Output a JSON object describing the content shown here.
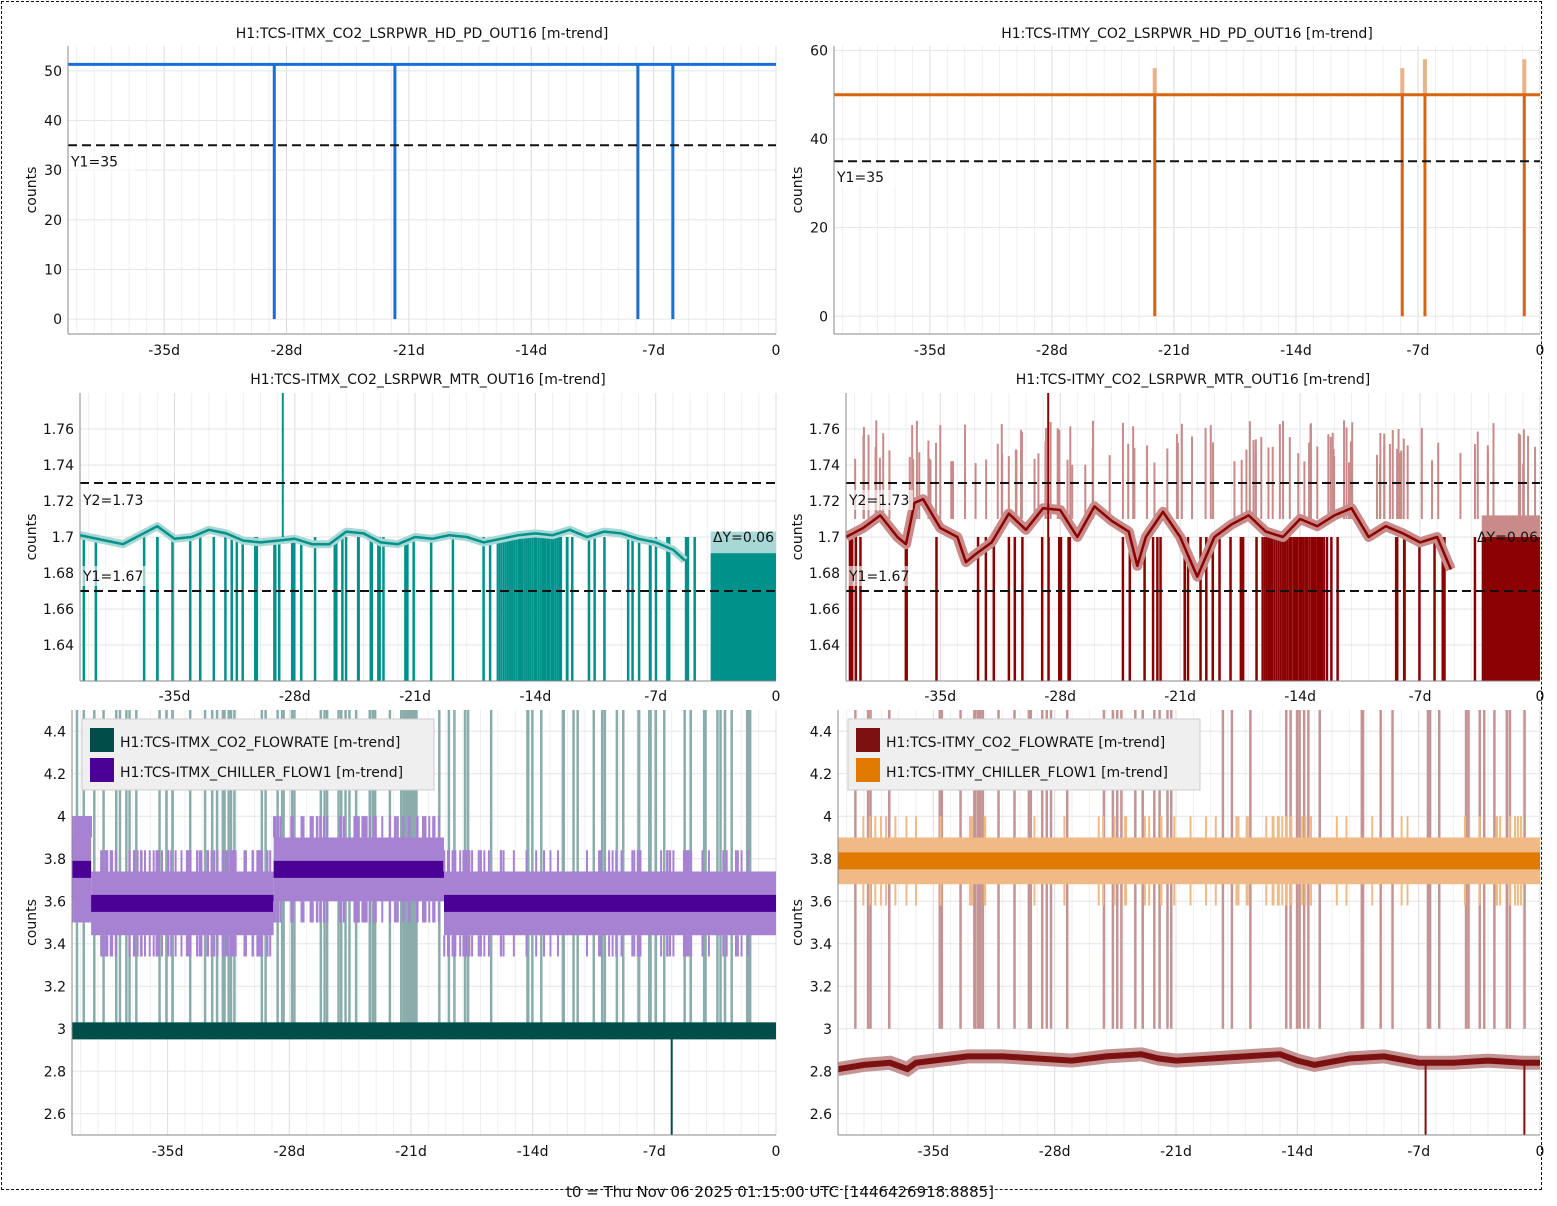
{
  "footer": {
    "t0_label": "t0 = Thu Nov 06 2025 01:15:00 UTC [1446426918.8885]"
  },
  "chart_data": [
    {
      "id": "itmx-hd-pd",
      "type": "line",
      "title": "H1:TCS-ITMX_CO2_LSRPWR_HD_PD_OUT16 [m-trend]",
      "xlabel": "",
      "ylabel": "counts",
      "xlim": [
        -40.5,
        0
      ],
      "ylim": [
        -3,
        55
      ],
      "x_ticks": [
        -35,
        -28,
        -21,
        -14,
        -7,
        0
      ],
      "x_tick_labels": [
        "-35d",
        "-28d",
        "-21d",
        "-14d",
        "-7d",
        "0"
      ],
      "y_ticks": [
        0,
        10,
        20,
        30,
        40,
        50
      ],
      "y_tick_labels": [
        "0",
        "10",
        "20",
        "30",
        "40",
        "50"
      ],
      "grid": true,
      "series": [
        {
          "name": "H1:TCS-ITMX_CO2_LSRPWR_HD_PD_OUT16",
          "color": "#1a6fd6",
          "baseline": 51.3,
          "dropouts_to": 0,
          "dropout_x": [
            -28.7,
            -21.8,
            -7.9,
            -5.9
          ]
        }
      ],
      "hlines": [
        {
          "label": "Y1=35",
          "y": 35
        }
      ]
    },
    {
      "id": "itmy-hd-pd",
      "type": "line",
      "title": "H1:TCS-ITMY_CO2_LSRPWR_HD_PD_OUT16 [m-trend]",
      "xlabel": "",
      "ylabel": "counts",
      "xlim": [
        -40.5,
        0
      ],
      "ylim": [
        -4,
        61
      ],
      "x_ticks": [
        -35,
        -28,
        -21,
        -14,
        -7,
        0
      ],
      "x_tick_labels": [
        "-35d",
        "-28d",
        "-21d",
        "-14d",
        "-7d",
        "0"
      ],
      "y_ticks": [
        0,
        20,
        40,
        60
      ],
      "y_tick_labels": [
        "0",
        "20",
        "40",
        "60"
      ],
      "grid": true,
      "series": [
        {
          "name": "H1:TCS-ITMY_CO2_LSRPWR_HD_PD_OUT16",
          "color": "#d9660f",
          "band_color": "#eab28a",
          "baseline": 50,
          "dropouts_to": 0,
          "dropout_x": [
            -22.1,
            -7.9,
            -6.6,
            -0.9
          ],
          "spike_max": [
            56,
            56,
            58,
            58
          ]
        }
      ],
      "hlines": [
        {
          "label": "Y1=35",
          "y": 35
        }
      ]
    },
    {
      "id": "itmx-mtr",
      "type": "line",
      "title": "H1:TCS-ITMX_CO2_LSRPWR_MTR_OUT16 [m-trend]",
      "xlabel": "",
      "ylabel": "counts",
      "xlim": [
        -40.5,
        0
      ],
      "ylim": [
        1.62,
        1.78
      ],
      "x_ticks": [
        -35,
        -28,
        -21,
        -14,
        -7,
        0
      ],
      "x_tick_labels": [
        "-35d",
        "-28d",
        "-21d",
        "-14d",
        "-7d",
        "0"
      ],
      "y_ticks": [
        1.64,
        1.66,
        1.68,
        1.7,
        1.72,
        1.74,
        1.76
      ],
      "y_tick_labels": [
        "1.64",
        "1.66",
        "1.68",
        "1.7",
        "1.72",
        "1.74",
        "1.76"
      ],
      "grid": true,
      "series": [
        {
          "name": "H1:TCS-ITMX_CO2_LSRPWR_MTR_OUT16",
          "color": "#00918a",
          "band_color": "#a8d8d5",
          "x": [
            -40.5,
            -39,
            -38,
            -37,
            -36,
            -35,
            -34,
            -33,
            -32,
            -31,
            -30,
            -29,
            -28,
            -27,
            -26,
            -25,
            -24,
            -23,
            -22,
            -21,
            -20,
            -19,
            -18,
            -17,
            -16,
            -15,
            -14,
            -13,
            -12,
            -11,
            -10,
            -9,
            -8,
            -7,
            -6,
            -5.3
          ],
          "y": [
            1.701,
            1.698,
            1.696,
            1.701,
            1.706,
            1.699,
            1.7,
            1.704,
            1.702,
            1.698,
            1.697,
            1.698,
            1.699,
            1.696,
            1.696,
            1.703,
            1.702,
            1.697,
            1.696,
            1.7,
            1.699,
            1.701,
            1.7,
            1.697,
            1.699,
            1.701,
            1.702,
            1.701,
            1.704,
            1.7,
            1.703,
            1.702,
            1.699,
            1.697,
            1.693,
            1.687
          ],
          "late_segment": {
            "x": [
              -3.8,
              0
            ],
            "y": 1.691
          }
        }
      ],
      "hlines": [
        {
          "label": "Y2=1.73",
          "y": 1.73
        },
        {
          "label": "Y1=1.67",
          "y": 1.67
        }
      ],
      "delta_label": "ΔY=0.06"
    },
    {
      "id": "itmy-mtr",
      "type": "line",
      "title": "H1:TCS-ITMY_CO2_LSRPWR_MTR_OUT16 [m-trend]",
      "xlabel": "",
      "ylabel": "counts",
      "xlim": [
        -40.5,
        0
      ],
      "ylim": [
        1.62,
        1.78
      ],
      "x_ticks": [
        -35,
        -28,
        -21,
        -14,
        -7,
        0
      ],
      "x_tick_labels": [
        "-35d",
        "-28d",
        "-21d",
        "-14d",
        "-7d",
        "0"
      ],
      "y_ticks": [
        1.64,
        1.66,
        1.68,
        1.7,
        1.72,
        1.74,
        1.76
      ],
      "y_tick_labels": [
        "1.64",
        "1.66",
        "1.68",
        "1.7",
        "1.72",
        "1.74",
        "1.76"
      ],
      "grid": true,
      "series": [
        {
          "name": "H1:TCS-ITMY_CO2_LSRPWR_MTR_OUT16",
          "color": "#8b0000",
          "band_color": "#c98a8a",
          "x": [
            -40.5,
            -39.5,
            -38.5,
            -37.5,
            -37,
            -36.5,
            -36,
            -35,
            -34,
            -33.5,
            -33,
            -32,
            -31,
            -30,
            -29,
            -28,
            -27,
            -26,
            -25,
            -24,
            -23.5,
            -23,
            -22,
            -21,
            -20,
            -19,
            -18,
            -17,
            -16,
            -15,
            -14,
            -13,
            -12,
            -11,
            -10,
            -9,
            -8,
            -7,
            -6,
            -5.2
          ],
          "y": [
            1.7,
            1.705,
            1.712,
            1.7,
            1.696,
            1.719,
            1.721,
            1.705,
            1.7,
            1.686,
            1.69,
            1.697,
            1.713,
            1.704,
            1.716,
            1.715,
            1.7,
            1.717,
            1.709,
            1.703,
            1.684,
            1.7,
            1.714,
            1.7,
            1.678,
            1.7,
            1.707,
            1.712,
            1.703,
            1.7,
            1.71,
            1.706,
            1.712,
            1.716,
            1.7,
            1.706,
            1.702,
            1.697,
            1.7,
            1.682
          ],
          "late_segment": {
            "x": [
              -3.4,
              0
            ],
            "y": 1.7
          }
        }
      ],
      "hlines": [
        {
          "label": "Y2=1.73",
          "y": 1.73
        },
        {
          "label": "Y1=1.67",
          "y": 1.67
        }
      ],
      "delta_label": "ΔY=0.06"
    },
    {
      "id": "itmx-flow",
      "type": "line",
      "title": "",
      "xlabel": "",
      "ylabel": "counts",
      "xlim": [
        -40.5,
        0
      ],
      "ylim": [
        2.5,
        4.5
      ],
      "x_ticks": [
        -35,
        -28,
        -21,
        -14,
        -7,
        0
      ],
      "x_tick_labels": [
        "-35d",
        "-28d",
        "-21d",
        "-14d",
        "-7d",
        "0"
      ],
      "y_ticks": [
        2.6,
        2.8,
        3.0,
        3.2,
        3.4,
        3.6,
        3.8,
        4.0,
        4.2,
        4.4
      ],
      "y_tick_labels": [
        "2.6",
        "2.8",
        "3",
        "3.2",
        "3.4",
        "3.6",
        "3.8",
        "4",
        "4.2",
        "4.4"
      ],
      "grid": true,
      "legend": "top-left",
      "series": [
        {
          "name": "H1:TCS-ITMX_CO2_FLOWRATE [m-trend]",
          "color": "#004d4a",
          "band_color": "#8aacab",
          "steps": [
            {
              "x": [
                -40.5,
                0
              ],
              "y": 2.99
            }
          ],
          "band": [
            2.96,
            3.03
          ]
        },
        {
          "name": "H1:TCS-ITMX_CHILLER_FLOW1 [m-trend]",
          "color": "#4b0096",
          "band_color": "#a782d2",
          "steps": [
            {
              "x": [
                -40.5,
                -39.4
              ],
              "y": 3.75
            },
            {
              "x": [
                -39.4,
                -28.9
              ],
              "y": 3.59
            },
            {
              "x": [
                -28.9,
                -19.1
              ],
              "y": 3.75
            },
            {
              "x": [
                -19.1,
                0
              ],
              "y": 3.59
            }
          ],
          "band_offset": [
            -0.15,
            0.15
          ]
        }
      ]
    },
    {
      "id": "itmy-flow",
      "type": "line",
      "title": "",
      "xlabel": "",
      "ylabel": "counts",
      "xlim": [
        -40.5,
        0
      ],
      "ylim": [
        2.5,
        4.5
      ],
      "x_ticks": [
        -35,
        -28,
        -21,
        -14,
        -7,
        0
      ],
      "x_tick_labels": [
        "-35d",
        "-28d",
        "-21d",
        "-14d",
        "-7d",
        "0"
      ],
      "y_ticks": [
        2.6,
        2.8,
        3.0,
        3.2,
        3.4,
        3.6,
        3.8,
        4.0,
        4.2,
        4.4
      ],
      "y_tick_labels": [
        "2.6",
        "2.8",
        "3",
        "3.2",
        "3.4",
        "3.6",
        "3.8",
        "4",
        "4.2",
        "4.4"
      ],
      "grid": true,
      "legend": "top-left",
      "series": [
        {
          "name": "H1:TCS-ITMY_CO2_FLOWRATE [m-trend]",
          "color": "#7d1010",
          "band_color": "#c49494",
          "x": [
            -40.5,
            -39,
            -37.5,
            -36.5,
            -36,
            -35,
            -33,
            -31,
            -29,
            -27,
            -25,
            -23,
            -22,
            -21,
            -19,
            -17,
            -15,
            -14,
            -13,
            -11,
            -9,
            -7,
            -5,
            -3,
            -1,
            0
          ],
          "y": [
            2.81,
            2.83,
            2.84,
            2.81,
            2.84,
            2.85,
            2.87,
            2.87,
            2.86,
            2.85,
            2.87,
            2.88,
            2.86,
            2.85,
            2.86,
            2.87,
            2.88,
            2.85,
            2.83,
            2.86,
            2.87,
            2.84,
            2.84,
            2.85,
            2.84,
            2.84
          ]
        },
        {
          "name": "H1:TCS-ITMY_CHILLER_FLOW1 [m-trend]",
          "color": "#e07a00",
          "band_color": "#efba85",
          "steps": [
            {
              "x": [
                -40.5,
                0
              ],
              "y": 3.79
            }
          ],
          "band_offset": [
            -0.11,
            0.11
          ]
        }
      ]
    }
  ]
}
